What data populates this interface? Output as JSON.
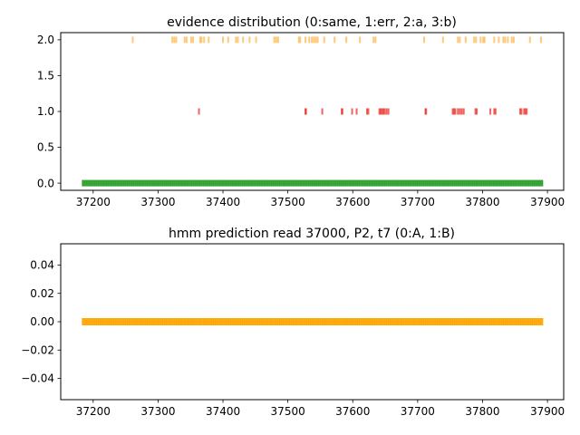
{
  "chart_data": [
    {
      "type": "scatter",
      "title": "evidence distribution (0:same, 1:err, 2:a, 3:b)",
      "xlabel": "",
      "ylabel": "",
      "xlim": [
        37150,
        37925
      ],
      "ylim": [
        -0.1,
        2.1
      ],
      "grid": false,
      "x_ticks": [
        37200,
        37300,
        37400,
        37500,
        37600,
        37700,
        37800,
        37900
      ],
      "x_tick_labels": [
        "37200",
        "37300",
        "37400",
        "37500",
        "37600",
        "37700",
        "37800",
        "37900"
      ],
      "y_ticks": [
        0.0,
        0.5,
        1.0,
        1.5,
        2.0
      ],
      "y_tick_labels": [
        "0.0",
        "0.5",
        "1.0",
        "1.5",
        "2.0"
      ],
      "series": [
        {
          "color": "#2ca02c",
          "marker": "vertical-line",
          "y": 0,
          "x_range": [
            37184,
            37892
          ],
          "dense": true
        },
        {
          "color": "#e8302a",
          "marker": "vertical-line",
          "y": 1,
          "x": [
            37363,
            37527,
            37528,
            37553,
            37583,
            37584,
            37599,
            37606,
            37622,
            37624,
            37641,
            37643,
            37645,
            37647,
            37649,
            37652,
            37655,
            37712,
            37713,
            37754,
            37756,
            37758,
            37762,
            37765,
            37768,
            37771,
            37789,
            37791,
            37812,
            37818,
            37820,
            37858,
            37860,
            37864,
            37866,
            37868
          ]
        },
        {
          "color": "#ffb74d",
          "marker": "vertical-line",
          "y": 2,
          "x": [
            37261,
            37322,
            37325,
            37328,
            37341,
            37344,
            37351,
            37354,
            37365,
            37367,
            37371,
            37378,
            37400,
            37408,
            37420,
            37423,
            37431,
            37441,
            37451,
            37479,
            37482,
            37485,
            37517,
            37519,
            37527,
            37533,
            37537,
            37540,
            37543,
            37546,
            37556,
            37572,
            37590,
            37611,
            37632,
            37635,
            37710,
            37739,
            37762,
            37765,
            37774,
            37787,
            37790,
            37797,
            37801,
            37803,
            37818,
            37825,
            37832,
            37835,
            37839,
            37845,
            37848,
            37873,
            37890
          ]
        }
      ]
    },
    {
      "type": "scatter",
      "title": "hmm prediction read 37000, P2, t7 (0:A, 1:B)",
      "xlabel": "",
      "ylabel": "",
      "xlim": [
        37150,
        37925
      ],
      "ylim": [
        -0.055,
        0.055
      ],
      "grid": false,
      "x_ticks": [
        37200,
        37300,
        37400,
        37500,
        37600,
        37700,
        37800,
        37900
      ],
      "x_tick_labels": [
        "37200",
        "37300",
        "37400",
        "37500",
        "37600",
        "37700",
        "37800",
        "37900"
      ],
      "y_ticks": [
        -0.04,
        -0.02,
        0.0,
        0.02,
        0.04
      ],
      "y_tick_labels": [
        "−0.04",
        "−0.02",
        "0.00",
        "0.02",
        "0.04"
      ],
      "series": [
        {
          "color": "#ffa500",
          "marker": "vertical-line",
          "y": 0,
          "x_range": [
            37184,
            37892
          ],
          "dense": true
        }
      ]
    }
  ]
}
